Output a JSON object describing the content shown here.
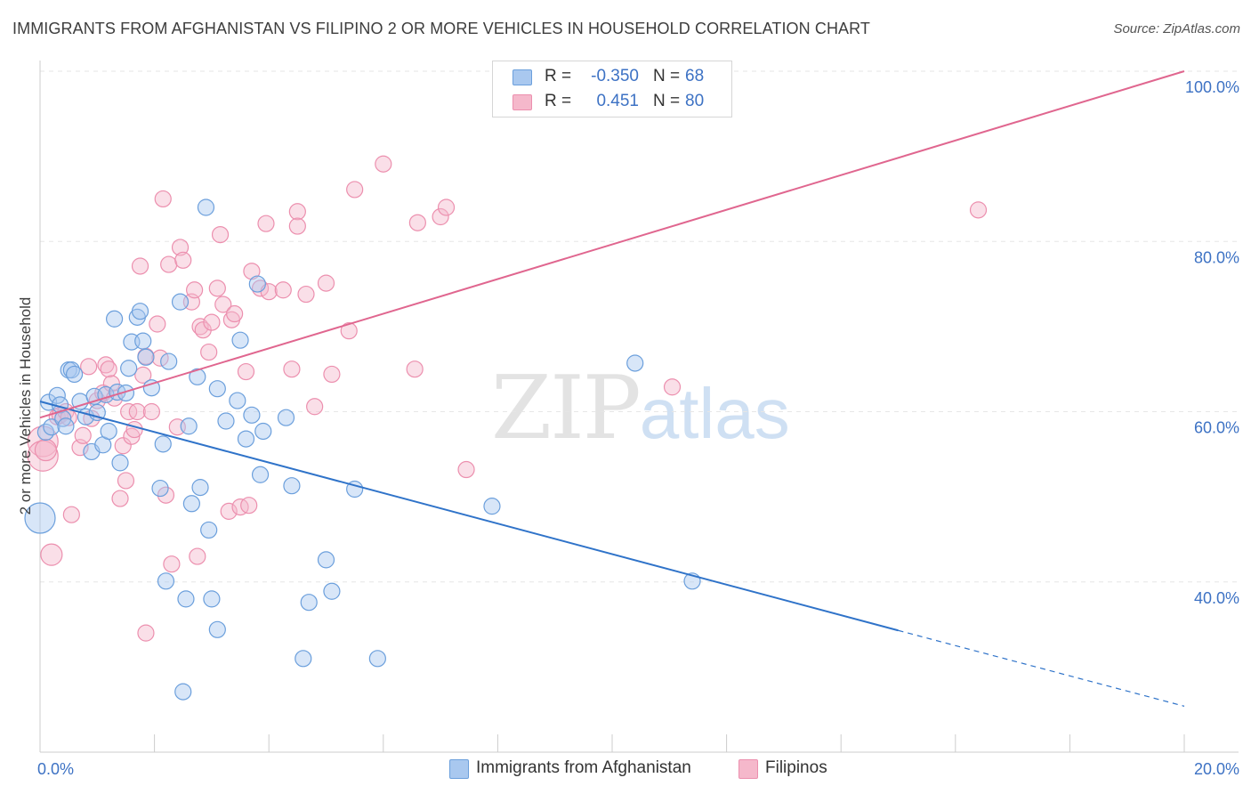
{
  "header": {
    "title": "IMMIGRANTS FROM AFGHANISTAN VS FILIPINO 2 OR MORE VEHICLES IN HOUSEHOLD CORRELATION CHART",
    "source": "Source: ZipAtlas.com"
  },
  "watermark": {
    "zip": "ZIP",
    "atlas": "atlas"
  },
  "legend": {
    "rows": [
      {
        "r_label": "R =",
        "r_value": "-0.350",
        "n_label": "N =",
        "n_value": "68"
      },
      {
        "r_label": "R =",
        "r_value": "0.451",
        "n_label": "N =",
        "n_value": "80"
      }
    ]
  },
  "bottom_legend": {
    "items": [
      {
        "label": "Immigrants from Afghanistan"
      },
      {
        "label": "Filipinos"
      }
    ]
  },
  "colors": {
    "blue_fill": "#a9c8ef",
    "blue_stroke": "#6b9fdc",
    "blue_line": "#2f73c9",
    "pink_fill": "#f5b8cb",
    "pink_stroke": "#ec8fae",
    "pink_line": "#e0668f",
    "axis_label": "#3d72c4",
    "grid": "#e6e6e6"
  },
  "chart_data": {
    "type": "scatter",
    "title": "IMMIGRANTS FROM AFGHANISTAN VS FILIPINO 2 OR MORE VEHICLES IN HOUSEHOLD CORRELATION CHART",
    "xlabel": "",
    "ylabel": "2 or more Vehicles in Household",
    "xlim": [
      0,
      20
    ],
    "ylim": [
      20,
      100
    ],
    "x_tick_labels": [
      "0.0%",
      "20.0%"
    ],
    "y_ticks": [
      40,
      60,
      80,
      100
    ],
    "y_tick_labels": [
      "40.0%",
      "60.0%",
      "80.0%",
      "100.0%"
    ],
    "grid": true,
    "series": [
      {
        "name": "Immigrants from Afghanistan",
        "color": "#a9c8ef",
        "trend": {
          "x0": 0,
          "y0": 61.2,
          "x1": 15,
          "y1": 34.3,
          "dashed_to_x": 20,
          "dashed_to_y": 25.4
        },
        "points": [
          [
            0.0,
            47.5,
            3
          ],
          [
            0.1,
            57.6,
            1
          ],
          [
            0.15,
            61.1,
            1
          ],
          [
            0.2,
            58.2,
            1
          ],
          [
            0.3,
            61.9,
            1
          ],
          [
            0.35,
            60.8,
            1
          ],
          [
            0.4,
            59.2,
            1
          ],
          [
            0.45,
            58.3,
            1
          ],
          [
            0.5,
            64.9,
            1
          ],
          [
            0.55,
            64.9,
            1
          ],
          [
            0.6,
            64.4,
            1
          ],
          [
            0.7,
            61.2,
            1
          ],
          [
            0.8,
            59.4,
            1
          ],
          [
            0.9,
            55.3,
            1
          ],
          [
            0.95,
            61.8,
            1
          ],
          [
            1.0,
            59.9,
            1
          ],
          [
            1.1,
            56.1,
            1
          ],
          [
            1.15,
            62.0,
            1
          ],
          [
            1.2,
            57.7,
            1
          ],
          [
            1.3,
            70.9,
            1
          ],
          [
            1.35,
            62.3,
            1
          ],
          [
            1.4,
            54.0,
            1
          ],
          [
            1.5,
            62.2,
            1
          ],
          [
            1.55,
            65.1,
            1
          ],
          [
            1.6,
            68.2,
            1
          ],
          [
            1.7,
            71.1,
            1
          ],
          [
            1.75,
            71.8,
            1
          ],
          [
            1.8,
            68.3,
            1
          ],
          [
            1.85,
            66.4,
            1
          ],
          [
            1.95,
            62.8,
            1
          ],
          [
            2.1,
            51.0,
            1
          ],
          [
            2.15,
            56.2,
            1
          ],
          [
            2.2,
            40.1,
            1
          ],
          [
            2.25,
            65.9,
            1
          ],
          [
            2.45,
            72.9,
            1
          ],
          [
            2.5,
            27.1,
            1
          ],
          [
            2.55,
            38.0,
            1
          ],
          [
            2.6,
            58.3,
            1
          ],
          [
            2.65,
            49.2,
            1
          ],
          [
            2.75,
            64.1,
            1
          ],
          [
            2.8,
            51.1,
            1
          ],
          [
            2.9,
            84.0,
            1
          ],
          [
            2.95,
            46.1,
            1
          ],
          [
            3.0,
            38.0,
            1
          ],
          [
            3.1,
            34.4,
            1
          ],
          [
            3.1,
            62.7,
            1
          ],
          [
            3.25,
            58.9,
            1
          ],
          [
            3.45,
            61.3,
            1
          ],
          [
            3.5,
            68.4,
            1
          ],
          [
            3.6,
            56.8,
            1
          ],
          [
            3.7,
            59.6,
            1
          ],
          [
            3.8,
            75.0,
            1
          ],
          [
            3.85,
            52.6,
            1
          ],
          [
            3.9,
            57.7,
            1
          ],
          [
            4.3,
            59.3,
            1
          ],
          [
            4.4,
            51.3,
            1
          ],
          [
            4.6,
            31.0,
            1
          ],
          [
            4.7,
            37.6,
            1
          ],
          [
            5.0,
            42.6,
            1
          ],
          [
            5.1,
            38.9,
            1
          ],
          [
            5.5,
            50.9,
            1
          ],
          [
            5.9,
            31.0,
            1
          ],
          [
            7.9,
            48.9,
            1
          ],
          [
            10.4,
            65.7,
            1
          ],
          [
            11.4,
            40.1,
            1
          ]
        ]
      },
      {
        "name": "Filipinos",
        "color": "#f5b8cb",
        "trend": {
          "x0": 0,
          "y0": 59.3,
          "x1": 20,
          "y1": 100.0
        },
        "points": [
          [
            0.05,
            56.5,
            3
          ],
          [
            0.05,
            54.8,
            3
          ],
          [
            0.1,
            55.5,
            2
          ],
          [
            0.2,
            43.2,
            2
          ],
          [
            0.3,
            59.4,
            1
          ],
          [
            0.35,
            59.6,
            1
          ],
          [
            0.45,
            60.0,
            1
          ],
          [
            0.5,
            59.3,
            1
          ],
          [
            0.55,
            47.9,
            1
          ],
          [
            0.7,
            55.8,
            1
          ],
          [
            0.75,
            57.2,
            1
          ],
          [
            0.85,
            65.3,
            1
          ],
          [
            0.9,
            59.2,
            1
          ],
          [
            1.0,
            61.3,
            1
          ],
          [
            1.1,
            62.2,
            1
          ],
          [
            1.15,
            65.5,
            1
          ],
          [
            1.2,
            65.0,
            1
          ],
          [
            1.25,
            63.3,
            1
          ],
          [
            1.3,
            61.6,
            1
          ],
          [
            1.4,
            49.8,
            1
          ],
          [
            1.45,
            56.0,
            1
          ],
          [
            1.5,
            51.9,
            1
          ],
          [
            1.55,
            60.0,
            1
          ],
          [
            1.6,
            57.1,
            1
          ],
          [
            1.65,
            57.9,
            1
          ],
          [
            1.7,
            60.0,
            1
          ],
          [
            1.75,
            77.1,
            1
          ],
          [
            1.8,
            64.3,
            1
          ],
          [
            1.85,
            66.5,
            1
          ],
          [
            1.85,
            34.0,
            1
          ],
          [
            1.95,
            60.0,
            1
          ],
          [
            2.05,
            70.3,
            1
          ],
          [
            2.1,
            66.3,
            1
          ],
          [
            2.15,
            85.0,
            1
          ],
          [
            2.2,
            50.2,
            1
          ],
          [
            2.25,
            77.3,
            1
          ],
          [
            2.3,
            42.1,
            1
          ],
          [
            2.4,
            58.2,
            1
          ],
          [
            2.45,
            79.3,
            1
          ],
          [
            2.5,
            77.8,
            1
          ],
          [
            2.65,
            72.9,
            1
          ],
          [
            2.7,
            74.3,
            1
          ],
          [
            2.75,
            43.0,
            1
          ],
          [
            2.8,
            70.0,
            1
          ],
          [
            2.85,
            69.6,
            1
          ],
          [
            2.95,
            67.0,
            1
          ],
          [
            3.0,
            70.5,
            1
          ],
          [
            3.1,
            74.5,
            1
          ],
          [
            3.15,
            80.8,
            1
          ],
          [
            3.2,
            72.6,
            1
          ],
          [
            3.3,
            48.3,
            1
          ],
          [
            3.35,
            70.8,
            1
          ],
          [
            3.4,
            71.5,
            1
          ],
          [
            3.5,
            48.8,
            1
          ],
          [
            3.6,
            64.7,
            1
          ],
          [
            3.65,
            49.0,
            1
          ],
          [
            3.7,
            76.5,
            1
          ],
          [
            3.85,
            74.5,
            1
          ],
          [
            3.95,
            82.1,
            1
          ],
          [
            4.0,
            74.1,
            1
          ],
          [
            4.25,
            74.3,
            1
          ],
          [
            4.4,
            65.0,
            1
          ],
          [
            4.5,
            83.5,
            1
          ],
          [
            4.5,
            81.8,
            1
          ],
          [
            4.65,
            73.8,
            1
          ],
          [
            4.8,
            60.6,
            1
          ],
          [
            5.0,
            75.1,
            1
          ],
          [
            5.1,
            64.4,
            1
          ],
          [
            5.4,
            69.5,
            1
          ],
          [
            5.5,
            86.1,
            1
          ],
          [
            6.0,
            89.1,
            1
          ],
          [
            6.55,
            65.0,
            1
          ],
          [
            6.6,
            82.2,
            1
          ],
          [
            7.0,
            82.9,
            1
          ],
          [
            7.1,
            84.0,
            1
          ],
          [
            7.45,
            53.2,
            1
          ],
          [
            11.05,
            62.9,
            1
          ],
          [
            16.4,
            83.7,
            1
          ]
        ]
      }
    ]
  }
}
